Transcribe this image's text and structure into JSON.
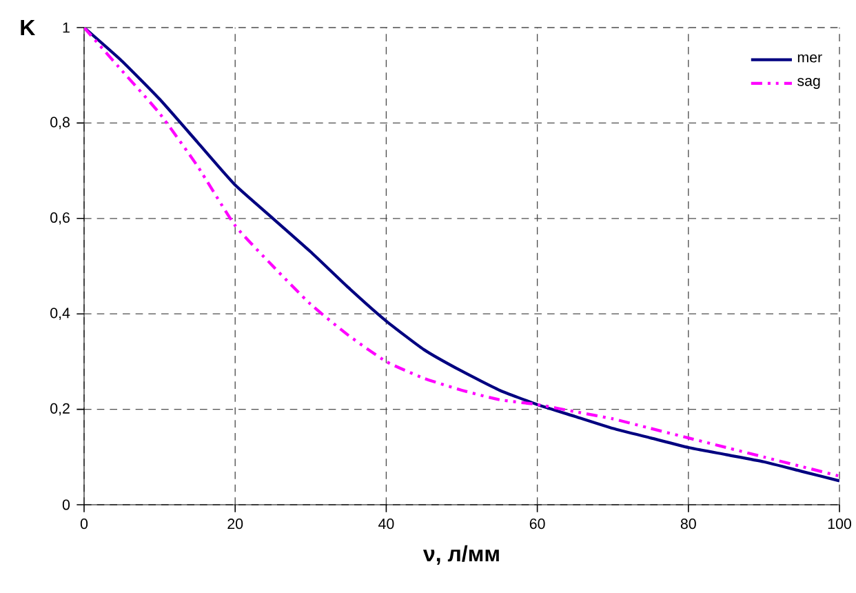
{
  "chart_data": {
    "type": "line",
    "xlabel": "ν, л/мм",
    "ylabel": "K",
    "x": [
      0,
      5,
      10,
      15,
      20,
      25,
      30,
      35,
      40,
      45,
      50,
      55,
      60,
      65,
      70,
      75,
      80,
      85,
      90,
      95,
      100
    ],
    "series": [
      {
        "name": "mer",
        "color": "#000080",
        "line_style": "solid",
        "values": [
          1,
          0.93,
          0.85,
          0.76,
          0.67,
          0.6,
          0.53,
          0.455,
          0.385,
          0.325,
          0.28,
          0.24,
          0.21,
          0.185,
          0.16,
          0.14,
          0.12,
          0.105,
          0.09,
          0.07,
          0.05
        ]
      },
      {
        "name": "sag",
        "color": "#ff00ff",
        "line_style": "dashdotdot",
        "values": [
          1,
          0.91,
          0.82,
          0.71,
          0.585,
          0.5,
          0.42,
          0.355,
          0.3,
          0.265,
          0.24,
          0.22,
          0.21,
          0.195,
          0.18,
          0.16,
          0.14,
          0.12,
          0.1,
          0.08,
          0.06
        ]
      }
    ],
    "xlim": [
      0,
      100
    ],
    "ylim": [
      0,
      1
    ],
    "xticks": [
      0,
      20,
      40,
      60,
      80,
      100
    ],
    "yticks": [
      0,
      {
        "value": 0.2,
        "label": "0,2"
      },
      {
        "value": 0.4,
        "label": "0,4"
      },
      {
        "value": 0.6,
        "label": "0,6"
      },
      {
        "value": 0.8,
        "label": "0,8"
      },
      1
    ],
    "grid": true,
    "legend": "top right",
    "marker": "none"
  }
}
